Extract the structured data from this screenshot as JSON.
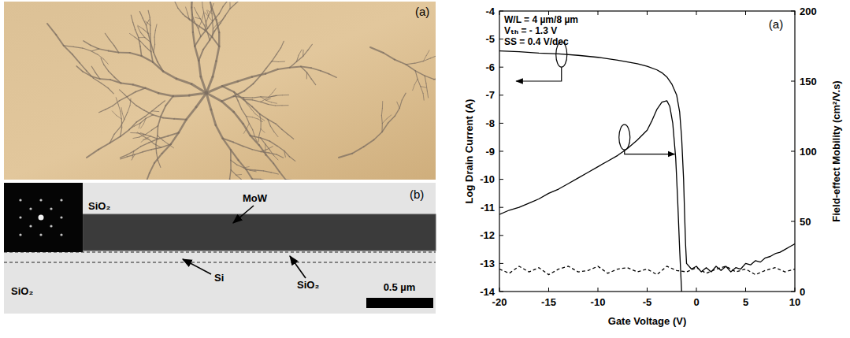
{
  "chart_data": {
    "type": "line",
    "title": "(a)",
    "annotations": [
      "W/L = 4 µm/8 µm",
      "Vₜₕ = - 1.3 V",
      "SS = 0.4 V/dec"
    ],
    "x_label": "Gate Voltage (V)",
    "y_label": "Log Drain Current (A)",
    "y2_label": "Field-effect Mobility (cm²/V.s)",
    "xlim": [
      -20,
      10
    ],
    "xticks": [
      -20,
      -15,
      -10,
      -5,
      0,
      5,
      10
    ],
    "ylim": [
      -14,
      -4
    ],
    "yticks": [
      -14,
      -13,
      -12,
      -11,
      -10,
      -9,
      -8,
      -7,
      -6,
      -5,
      -4
    ],
    "y2lim": [
      0,
      200
    ],
    "y2ticks": [
      0,
      50,
      100,
      150,
      200
    ],
    "series": [
      {
        "color": "#000000",
        "line_style": "solid",
        "x": [
          -20,
          -18,
          -16,
          -14,
          -12,
          -10,
          -8,
          -6,
          -5,
          -4,
          -3.5,
          -3,
          -2.5,
          -2,
          -1.7,
          -1.5,
          -1.3,
          -1.2,
          -1.1,
          -1.0,
          -0.5,
          0,
          0.5,
          1,
          1.5,
          2,
          2.5,
          3,
          3.5,
          4,
          4.5,
          5,
          5.5,
          6,
          6.5,
          7,
          7.5,
          8,
          8.5,
          9,
          9.5,
          10
        ],
        "values": [
          -5.42,
          -5.45,
          -5.5,
          -5.53,
          -5.58,
          -5.65,
          -5.75,
          -5.88,
          -5.97,
          -6.1,
          -6.2,
          -6.35,
          -6.6,
          -7.0,
          -7.6,
          -8.5,
          -10.0,
          -11.2,
          -12.3,
          -13.0,
          -13.2,
          -13.1,
          -13.3,
          -13.15,
          -13.3,
          -13.1,
          -13.25,
          -13.1,
          -13.3,
          -13.15,
          -13.2,
          -13.0,
          -13.05,
          -12.9,
          -12.95,
          -12.8,
          -12.75,
          -12.65,
          -12.6,
          -12.5,
          -12.4,
          -12.3
        ]
      },
      {
        "color": "#000000",
        "line_style": "dashed",
        "x": [
          -20,
          -19,
          -18,
          -17,
          -16,
          -15,
          -14,
          -13,
          -12,
          -11,
          -10,
          -9,
          -8,
          -7,
          -6,
          -5,
          -4,
          -3,
          -2,
          -1,
          0,
          1,
          2,
          3,
          4,
          5,
          6,
          7,
          8,
          9,
          10
        ],
        "values": [
          -13.2,
          -13.35,
          -13.1,
          -13.3,
          -13.15,
          -13.4,
          -13.2,
          -13.1,
          -13.3,
          -13.25,
          -13.1,
          -13.35,
          -13.2,
          -13.15,
          -13.3,
          -13.2,
          -13.4,
          -13.1,
          -13.25,
          -13.3,
          -13.15,
          -13.35,
          -13.2,
          -13.1,
          -13.3,
          -13.2,
          -13.4,
          -13.25,
          -13.15,
          -13.3,
          -13.2
        ]
      },
      {
        "color": "#000000",
        "line_style": "solid",
        "axis": "y2",
        "x": [
          -20,
          -19,
          -18,
          -17,
          -16,
          -15,
          -14,
          -13,
          -12,
          -11,
          -10,
          -9,
          -8,
          -7,
          -6,
          -5,
          -4.5,
          -4,
          -3.5,
          -3,
          -2.7,
          -2.4,
          -2.1,
          -1.9,
          -1.7,
          -1.5
        ],
        "values": [
          55,
          58,
          60,
          63,
          66,
          70,
          73,
          77,
          81,
          85,
          89,
          93,
          97,
          102,
          108,
          115,
          122,
          130,
          135,
          136,
          132,
          120,
          95,
          65,
          30,
          0
        ]
      }
    ]
  },
  "images": {
    "photo": {
      "label": "(a)"
    },
    "tem": {
      "label": "(b)",
      "layers": [
        "SiO₂",
        "MoW",
        "Si",
        "SiO₂",
        "SiO₂"
      ],
      "scale_bar": "0.5 µm"
    }
  }
}
